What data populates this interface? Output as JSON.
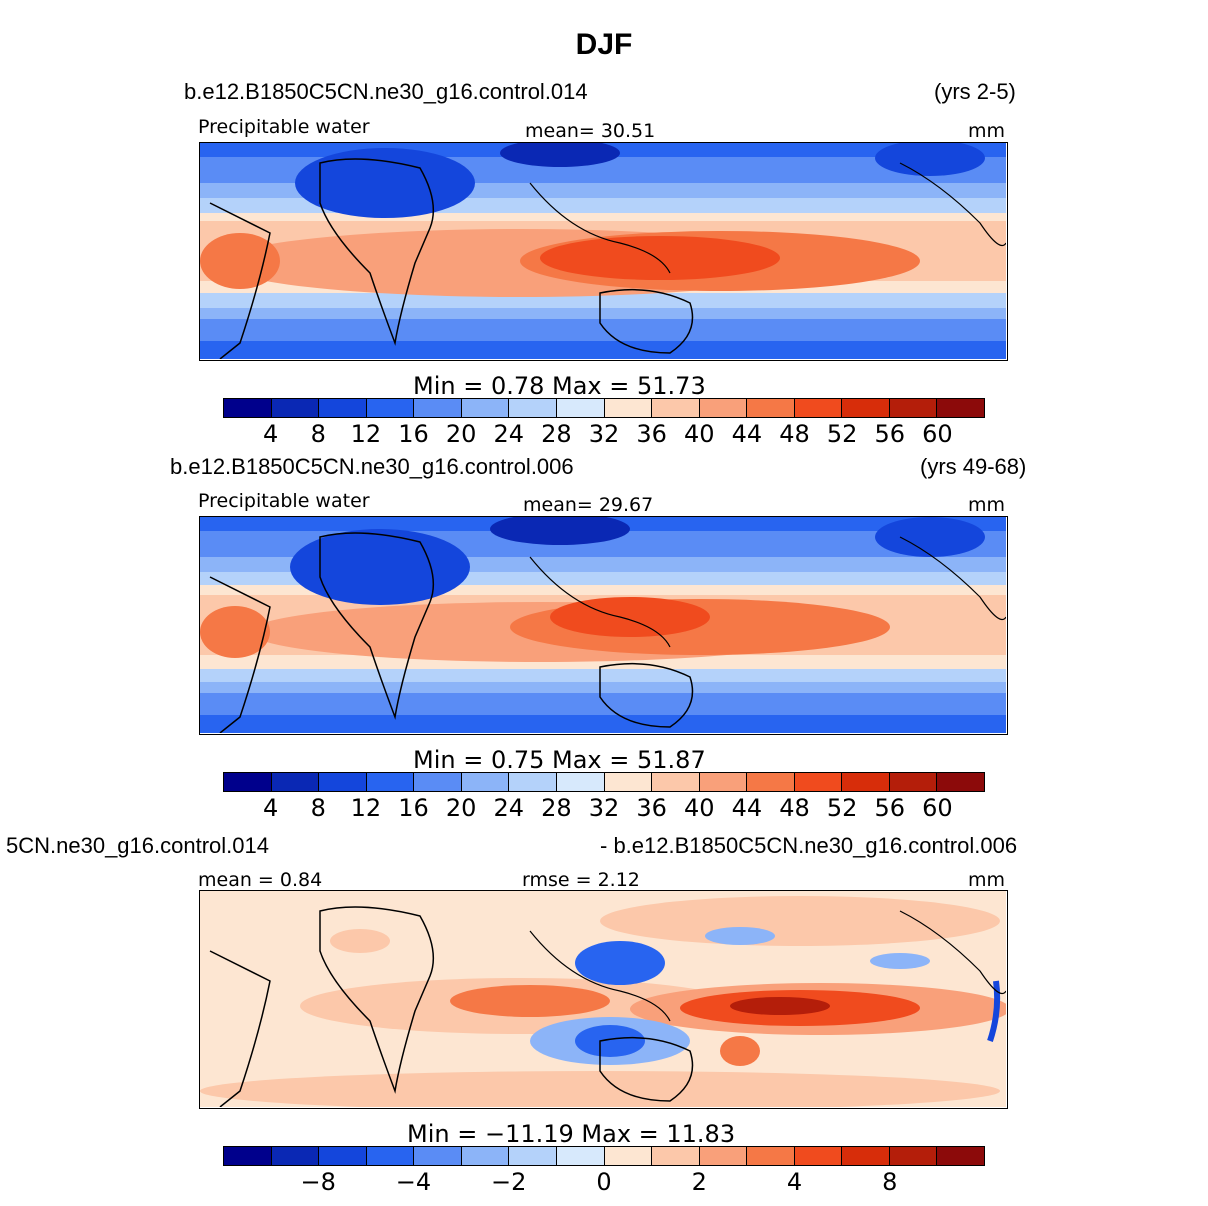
{
  "title": "DJF",
  "panels": [
    {
      "case_name": "b.e12.B1850C5CN.ne30_g16.control.014",
      "years": "(yrs 2-5)",
      "left_label": "Precipitable  water",
      "center_label": "mean=   30.51",
      "units": "mm",
      "minmax": "Min  =     0.78  Max  =     51.73",
      "colorbar_ticks": [
        "4",
        "8",
        "12",
        "16",
        "20",
        "24",
        "28",
        "32",
        "36",
        "40",
        "44",
        "48",
        "52",
        "56",
        "60"
      ],
      "type": "field"
    },
    {
      "case_name": "b.e12.B1850C5CN.ne30_g16.control.006",
      "years": "(yrs 49-68)",
      "left_label": "Precipitable  water",
      "center_label": "mean=   29.67",
      "units": "mm",
      "minmax": "Min  =     0.75  Max  =     51.87",
      "colorbar_ticks": [
        "4",
        "8",
        "12",
        "16",
        "20",
        "24",
        "28",
        "32",
        "36",
        "40",
        "44",
        "48",
        "52",
        "56",
        "60"
      ],
      "type": "field"
    },
    {
      "case_name": "5CN.ne30_g16.control.014",
      "years": "- b.e12.B1850C5CN.ne30_g16.control.006",
      "left_label": "mean  =     0.84",
      "center_label": "rmse  =     2.12",
      "units": "mm",
      "minmax": "Min  = −11.19  Max  =    11.83",
      "colorbar_ticks": [
        "−8",
        "−4",
        "−2",
        "0",
        "2",
        "4",
        "8"
      ],
      "type": "diff"
    }
  ],
  "colorbar_colors": [
    "#00008c",
    "#0a28b4",
    "#1446dc",
    "#2864f0",
    "#5a8cf5",
    "#8cb4f8",
    "#b4d2fa",
    "#d7e9fc",
    "#fde6d2",
    "#fcc8aa",
    "#f9a07a",
    "#f57846",
    "#f04b1e",
    "#d72d0a",
    "#b41e0a",
    "#8c0a0a"
  ]
}
